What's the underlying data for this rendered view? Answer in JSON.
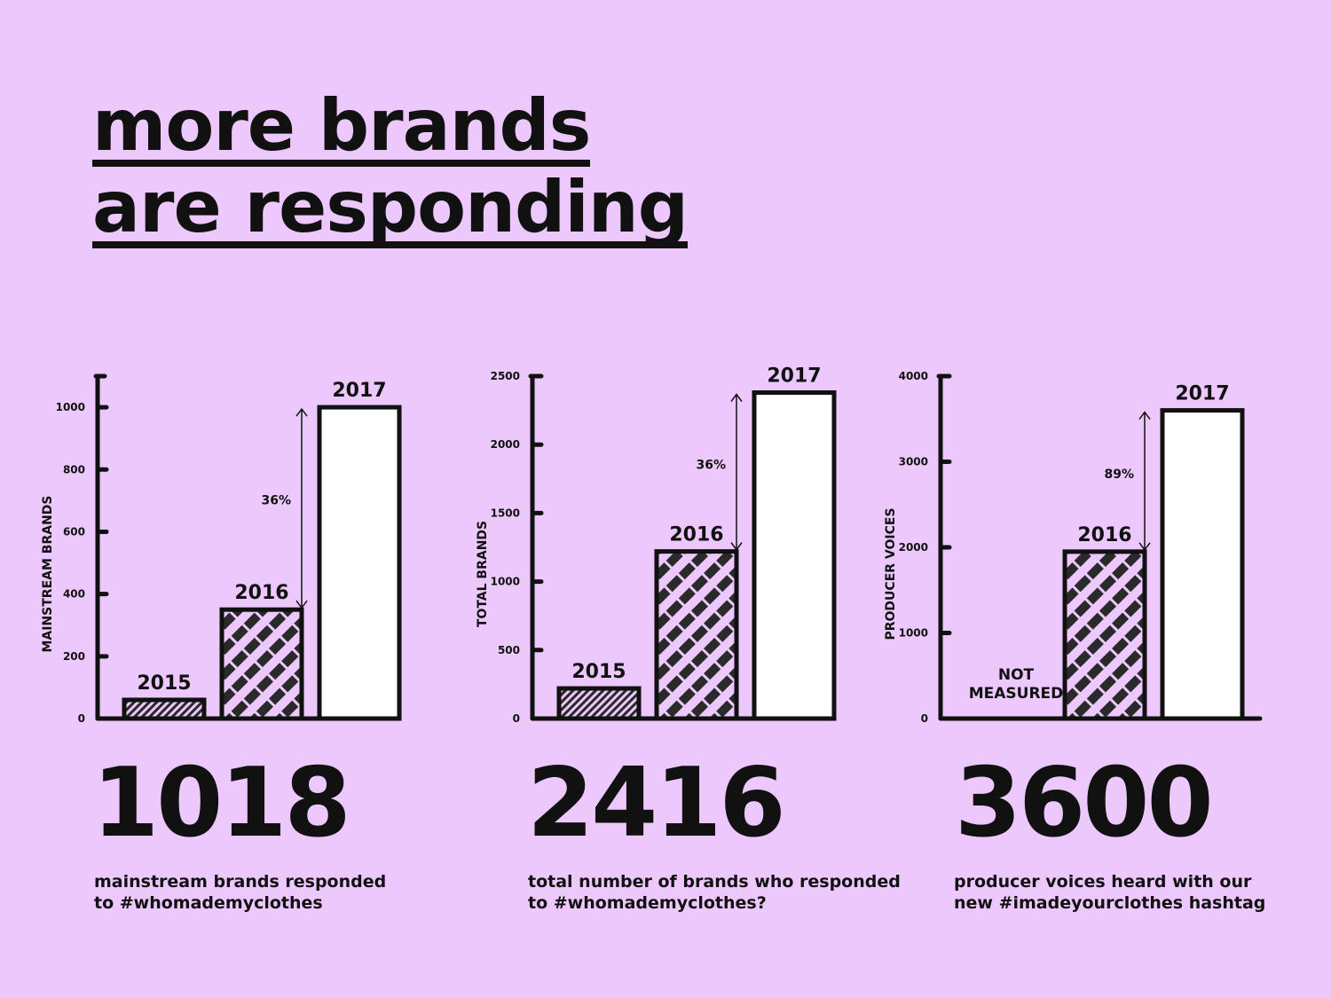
{
  "title": {
    "line1": "more brands",
    "line2": "are responding"
  },
  "colors": {
    "background": "#ecc8fd",
    "ink": "#111111",
    "bar_2017": "#ffffff"
  },
  "chart_data": [
    {
      "type": "bar",
      "ylabel": "MAINSTREAM BRANDS",
      "ylim": [
        0,
        1100
      ],
      "yticks": [
        0,
        200,
        400,
        600,
        800,
        1000
      ],
      "categories": [
        "2015",
        "2016",
        "2017"
      ],
      "values": [
        60,
        350,
        1000
      ],
      "annotation": {
        "text": "36%",
        "from": "2016",
        "to": "2017"
      },
      "big_number": "1018",
      "caption": [
        "mainstream brands responded",
        "to #whomademyclothes"
      ]
    },
    {
      "type": "bar",
      "ylabel": "TOTAL BRANDS",
      "ylim": [
        0,
        2500
      ],
      "yticks": [
        0,
        500,
        1000,
        1500,
        2000,
        2500
      ],
      "categories": [
        "2015",
        "2016",
        "2017"
      ],
      "values": [
        220,
        1220,
        2380
      ],
      "annotation": {
        "text": "36%",
        "from": "2016",
        "to": "2017"
      },
      "big_number": "2416",
      "caption": [
        "total number of brands who responded",
        "to #whomademyclothes?"
      ]
    },
    {
      "type": "bar",
      "ylabel": "PRODUCER VOICES",
      "ylim": [
        0,
        4000
      ],
      "yticks": [
        0,
        1000,
        2000,
        3000,
        4000
      ],
      "categories": [
        "2015",
        "2016",
        "2017"
      ],
      "values": [
        null,
        1950,
        3600
      ],
      "not_measured": [
        "NOT",
        "MEASURED"
      ],
      "annotation": {
        "text": "89%",
        "from": "2016",
        "to": "2017"
      },
      "big_number": "3600",
      "caption": [
        "producer voices heard with our",
        "new #imadeyourclothes hashtag"
      ]
    }
  ]
}
